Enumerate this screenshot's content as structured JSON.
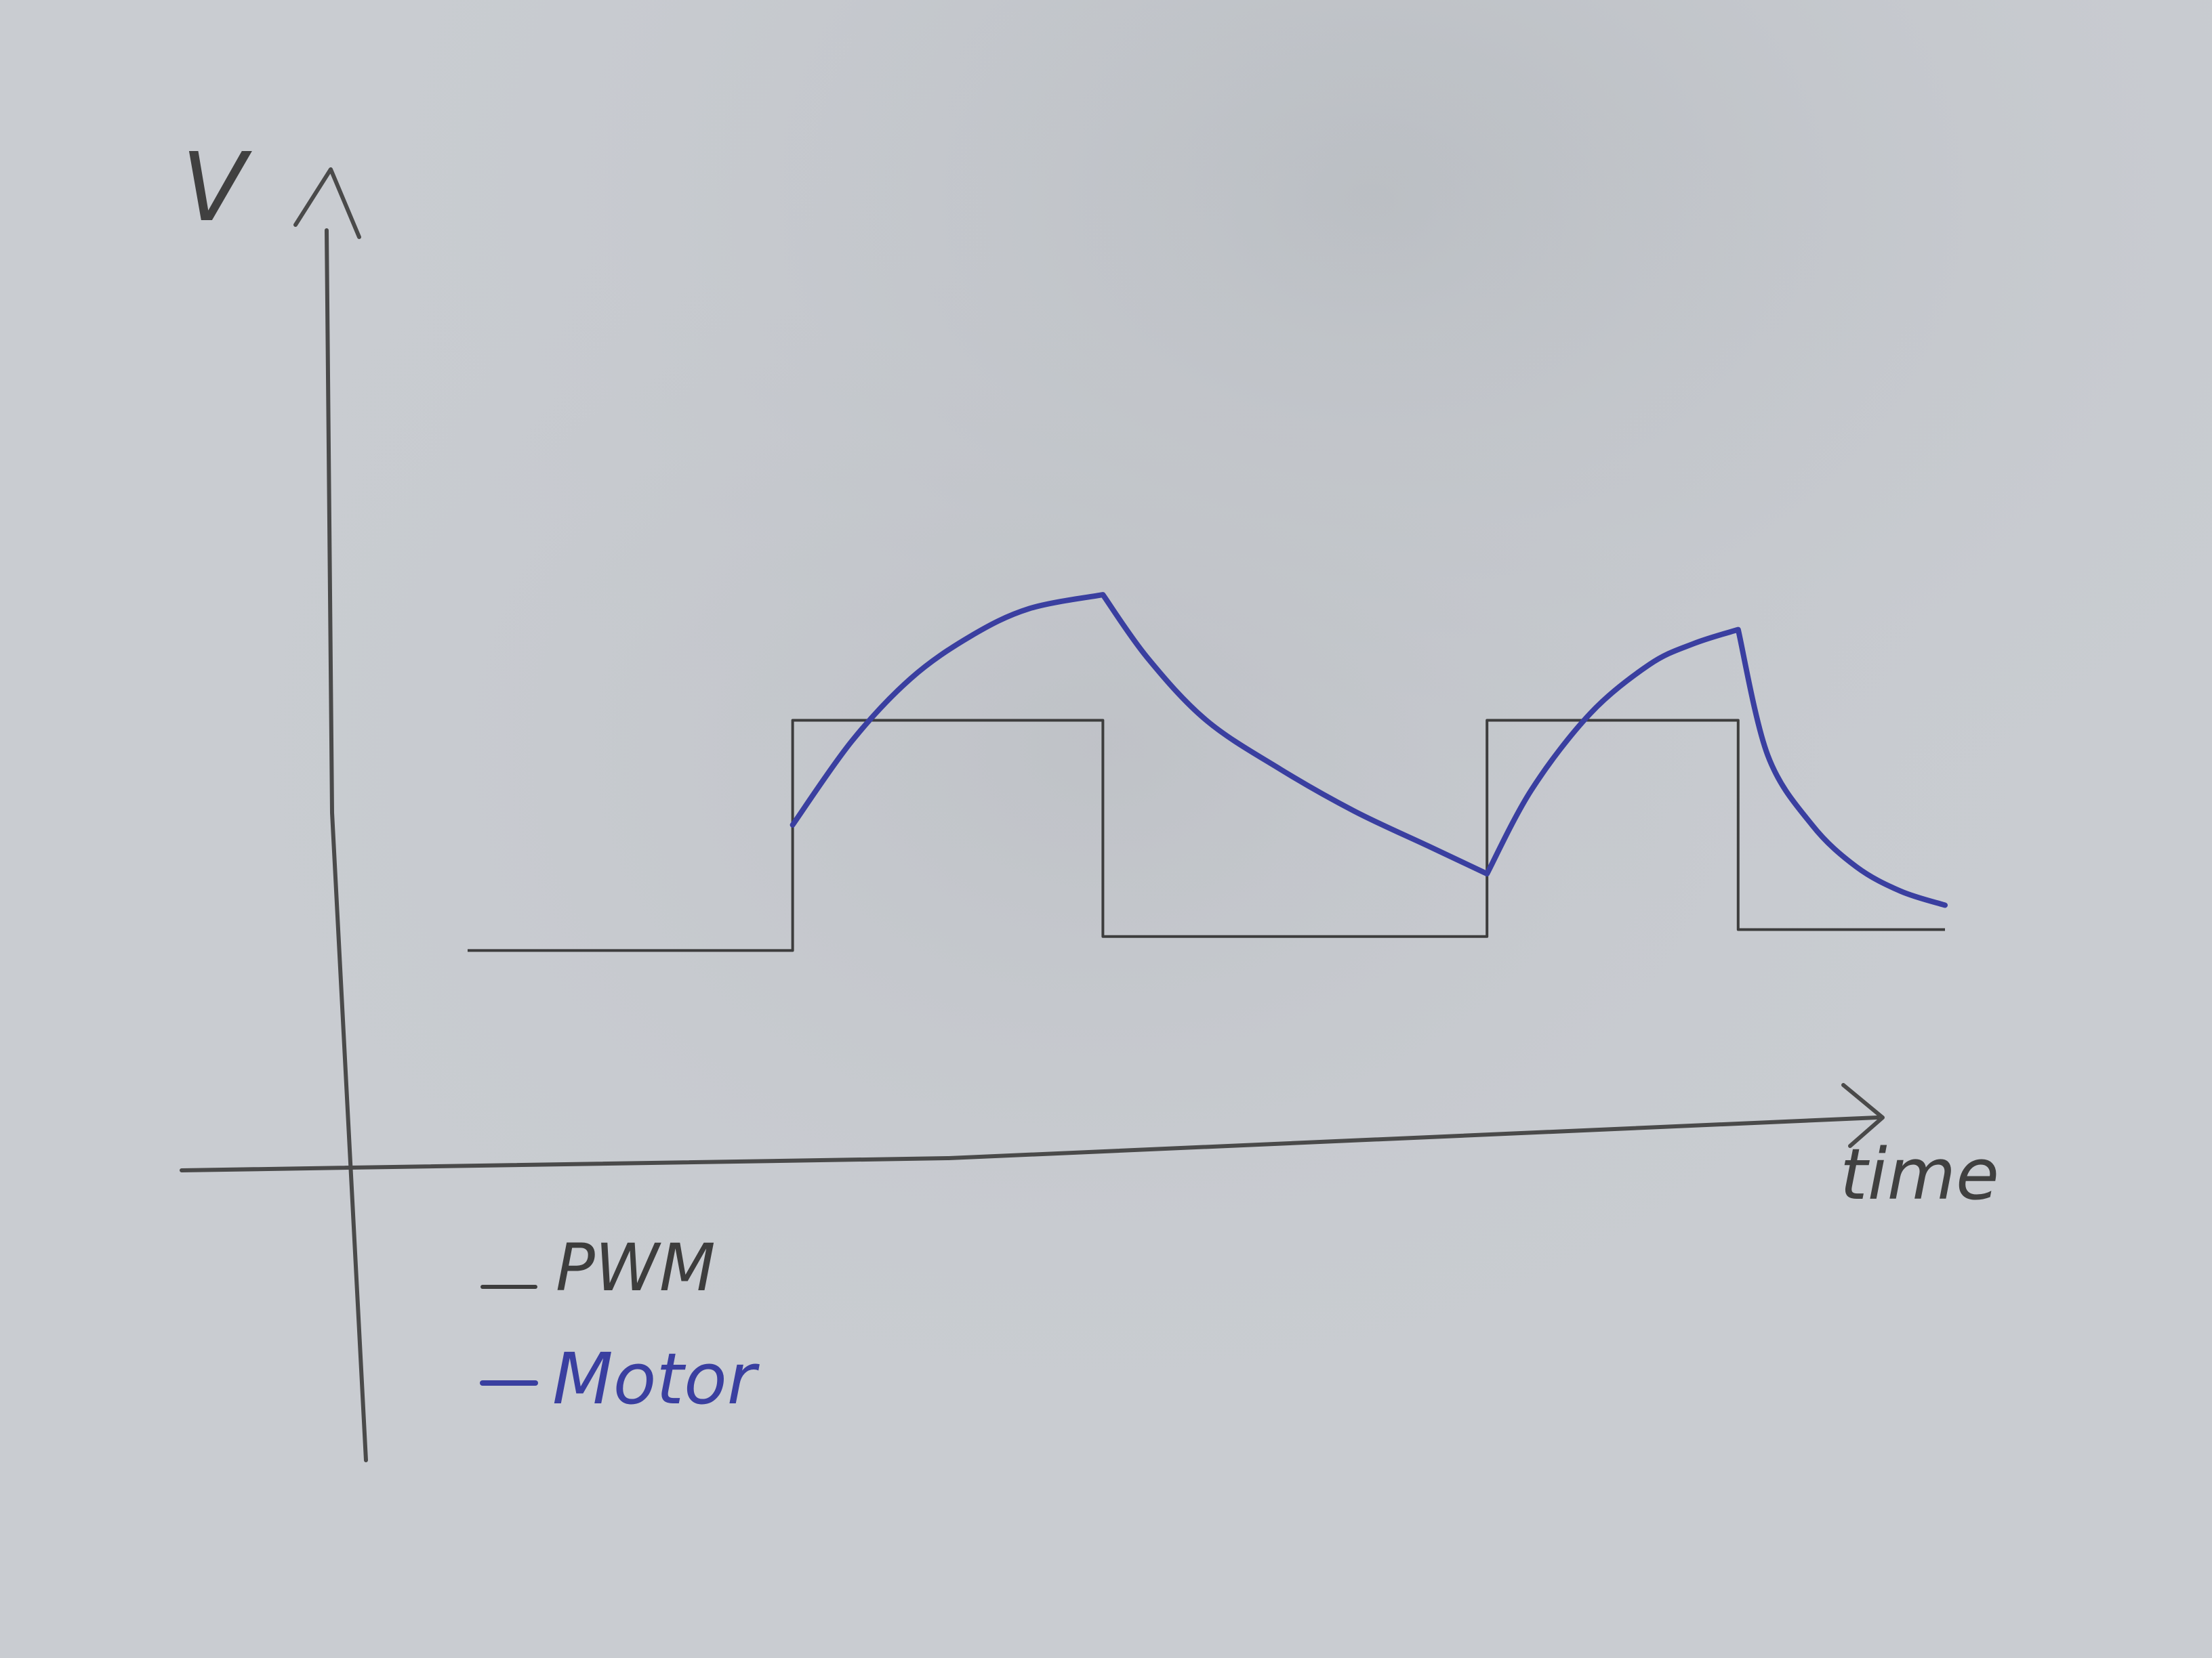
{
  "chart_data": {
    "type": "line",
    "title": "",
    "xlabel": "time",
    "ylabel": "V",
    "grid": false,
    "legend_placement": "bottom-left",
    "xlim": [
      0,
      10
    ],
    "ylim": [
      0,
      10
    ],
    "colors": {
      "paper": "#c9ccd1",
      "axis": "#4a4a4a",
      "pwm": "#3d3d3d",
      "motor": "#3a3fa0"
    },
    "series": [
      {
        "name": "PWM",
        "color": "#3d3d3d",
        "points": [
          [
            0.0,
            2.2
          ],
          [
            2.2,
            2.2
          ],
          [
            2.2,
            5.5
          ],
          [
            4.3,
            5.5
          ],
          [
            4.3,
            2.4
          ],
          [
            6.9,
            2.4
          ],
          [
            6.9,
            5.5
          ],
          [
            8.6,
            5.5
          ],
          [
            8.6,
            2.5
          ],
          [
            10.0,
            2.5
          ]
        ]
      },
      {
        "name": "Motor",
        "color": "#3a3fa0",
        "points": [
          [
            2.2,
            4.0
          ],
          [
            2.6,
            5.2
          ],
          [
            3.0,
            6.1
          ],
          [
            3.4,
            6.7
          ],
          [
            3.8,
            7.1
          ],
          [
            4.3,
            7.3
          ],
          [
            4.6,
            6.4
          ],
          [
            5.0,
            5.5
          ],
          [
            5.5,
            4.8
          ],
          [
            6.0,
            4.2
          ],
          [
            6.5,
            3.7
          ],
          [
            6.9,
            3.3
          ],
          [
            7.2,
            4.5
          ],
          [
            7.6,
            5.6
          ],
          [
            8.0,
            6.3
          ],
          [
            8.3,
            6.6
          ],
          [
            8.6,
            6.8
          ],
          [
            8.8,
            5.0
          ],
          [
            9.1,
            4.0
          ],
          [
            9.4,
            3.4
          ],
          [
            9.7,
            3.05
          ],
          [
            10.0,
            2.85
          ]
        ]
      }
    ]
  }
}
